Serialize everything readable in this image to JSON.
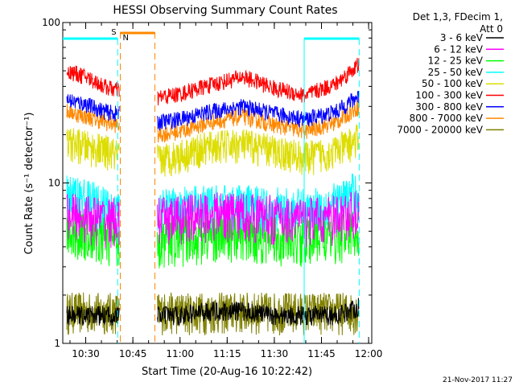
{
  "chart_data": {
    "type": "line",
    "title": "HESSI Observing Summary Count Rates",
    "xlabel": "Start Time (20-Aug-16 10:22:42)",
    "ylabel": "Count Rate (s⁻¹ detector⁻¹)",
    "yscale": "log",
    "ylim": [
      1,
      100
    ],
    "ytick_labels": [
      "1",
      "10",
      "100"
    ],
    "xlim": [
      "10:22:42",
      "12:01:00"
    ],
    "xtick_labels": [
      "10:30",
      "10:45",
      "11:00",
      "11:15",
      "11:30",
      "11:45",
      "12:00"
    ],
    "legend_header": [
      "Det 1,3, FDecim 1,",
      "Att 0"
    ],
    "legend_position": "right",
    "footer_date": "21-Nov-2017 11:27",
    "markers": {
      "saa_label": "S",
      "night_label": "N",
      "saa_interval": [
        "10:41:00",
        "10:52:00"
      ],
      "night_intervals": [
        [
          "10:22:42",
          "10:40:10"
        ],
        [
          "11:39:30",
          "11:57:00"
        ]
      ]
    },
    "series": [
      {
        "name": "3 - 6 keV",
        "color": "#000000",
        "x": [
          "10:24",
          "10:30",
          "10:36",
          "10:40",
          "10:53",
          "11:00",
          "11:10",
          "11:20",
          "11:30",
          "11:40",
          "11:50",
          "11:57"
        ],
        "values": [
          1.5,
          1.5,
          1.5,
          1.5,
          1.5,
          1.5,
          1.6,
          1.6,
          1.5,
          1.5,
          1.5,
          1.7
        ]
      },
      {
        "name": "6 - 12 keV",
        "color": "#ff00ff",
        "x": [
          "10:24",
          "10:30",
          "10:36",
          "10:40",
          "10:53",
          "11:00",
          "11:10",
          "11:20",
          "11:30",
          "11:40",
          "11:50",
          "11:57"
        ],
        "values": [
          6.5,
          6.3,
          6.0,
          6.0,
          6.0,
          6.2,
          6.5,
          6.5,
          6.2,
          6.0,
          6.2,
          6.8
        ]
      },
      {
        "name": "12 - 25 keV",
        "color": "#00ff00",
        "x": [
          "10:24",
          "10:30",
          "10:36",
          "10:40",
          "10:53",
          "11:00",
          "11:10",
          "11:20",
          "11:30",
          "11:40",
          "11:50",
          "11:57"
        ],
        "values": [
          5.0,
          4.8,
          4.6,
          4.5,
          4.5,
          4.6,
          4.8,
          4.8,
          4.6,
          4.5,
          4.7,
          5.2
        ]
      },
      {
        "name": "25 - 50 keV",
        "color": "#00ffff",
        "x": [
          "10:24",
          "10:30",
          "10:36",
          "10:40",
          "10:53",
          "11:00",
          "11:10",
          "11:20",
          "11:30",
          "11:40",
          "11:50",
          "11:57"
        ],
        "values": [
          8.5,
          8.0,
          7.0,
          6.7,
          6.7,
          7.0,
          7.2,
          7.2,
          7.0,
          6.8,
          7.5,
          9.0
        ]
      },
      {
        "name": "50 - 100 keV",
        "color": "#dddd00",
        "x": [
          "10:24",
          "10:30",
          "10:36",
          "10:40",
          "10:53",
          "11:00",
          "11:10",
          "11:20",
          "11:30",
          "11:40",
          "11:50",
          "11:57"
        ],
        "values": [
          18,
          17,
          16,
          15,
          14,
          15,
          17,
          17.5,
          16,
          14.5,
          16,
          19
        ]
      },
      {
        "name": "100 - 300 keV",
        "color": "#ff0000",
        "x": [
          "10:24",
          "10:30",
          "10:36",
          "10:40",
          "10:53",
          "11:00",
          "11:10",
          "11:20",
          "11:30",
          "11:40",
          "11:50",
          "11:57"
        ],
        "values": [
          50,
          46,
          40,
          38,
          34,
          36,
          41,
          46,
          39,
          35,
          42,
          55
        ]
      },
      {
        "name": "300 - 800 keV",
        "color": "#0000ff",
        "x": [
          "10:24",
          "10:30",
          "10:36",
          "10:40",
          "10:53",
          "11:00",
          "11:10",
          "11:20",
          "11:30",
          "11:40",
          "11:50",
          "11:57"
        ],
        "values": [
          33,
          31,
          28,
          27,
          24,
          25,
          28,
          30,
          27,
          25,
          28,
          35
        ]
      },
      {
        "name": "800 - 7000 keV",
        "color": "#ff8800",
        "x": [
          "10:24",
          "10:30",
          "10:36",
          "10:40",
          "10:53",
          "11:00",
          "11:10",
          "11:20",
          "11:30",
          "11:40",
          "11:50",
          "11:57"
        ],
        "values": [
          28,
          26,
          24,
          23,
          20,
          21,
          24,
          26,
          23,
          21,
          24,
          30
        ]
      },
      {
        "name": "7000 - 20000 keV",
        "color": "#808000",
        "x": [
          "10:24",
          "10:30",
          "10:36",
          "10:40",
          "10:53",
          "11:00",
          "11:10",
          "11:20",
          "11:30",
          "11:40",
          "11:50",
          "11:57"
        ],
        "values": [
          1.6,
          1.6,
          1.6,
          1.6,
          1.6,
          1.6,
          1.6,
          1.6,
          1.6,
          1.6,
          1.6,
          1.6
        ]
      }
    ]
  }
}
